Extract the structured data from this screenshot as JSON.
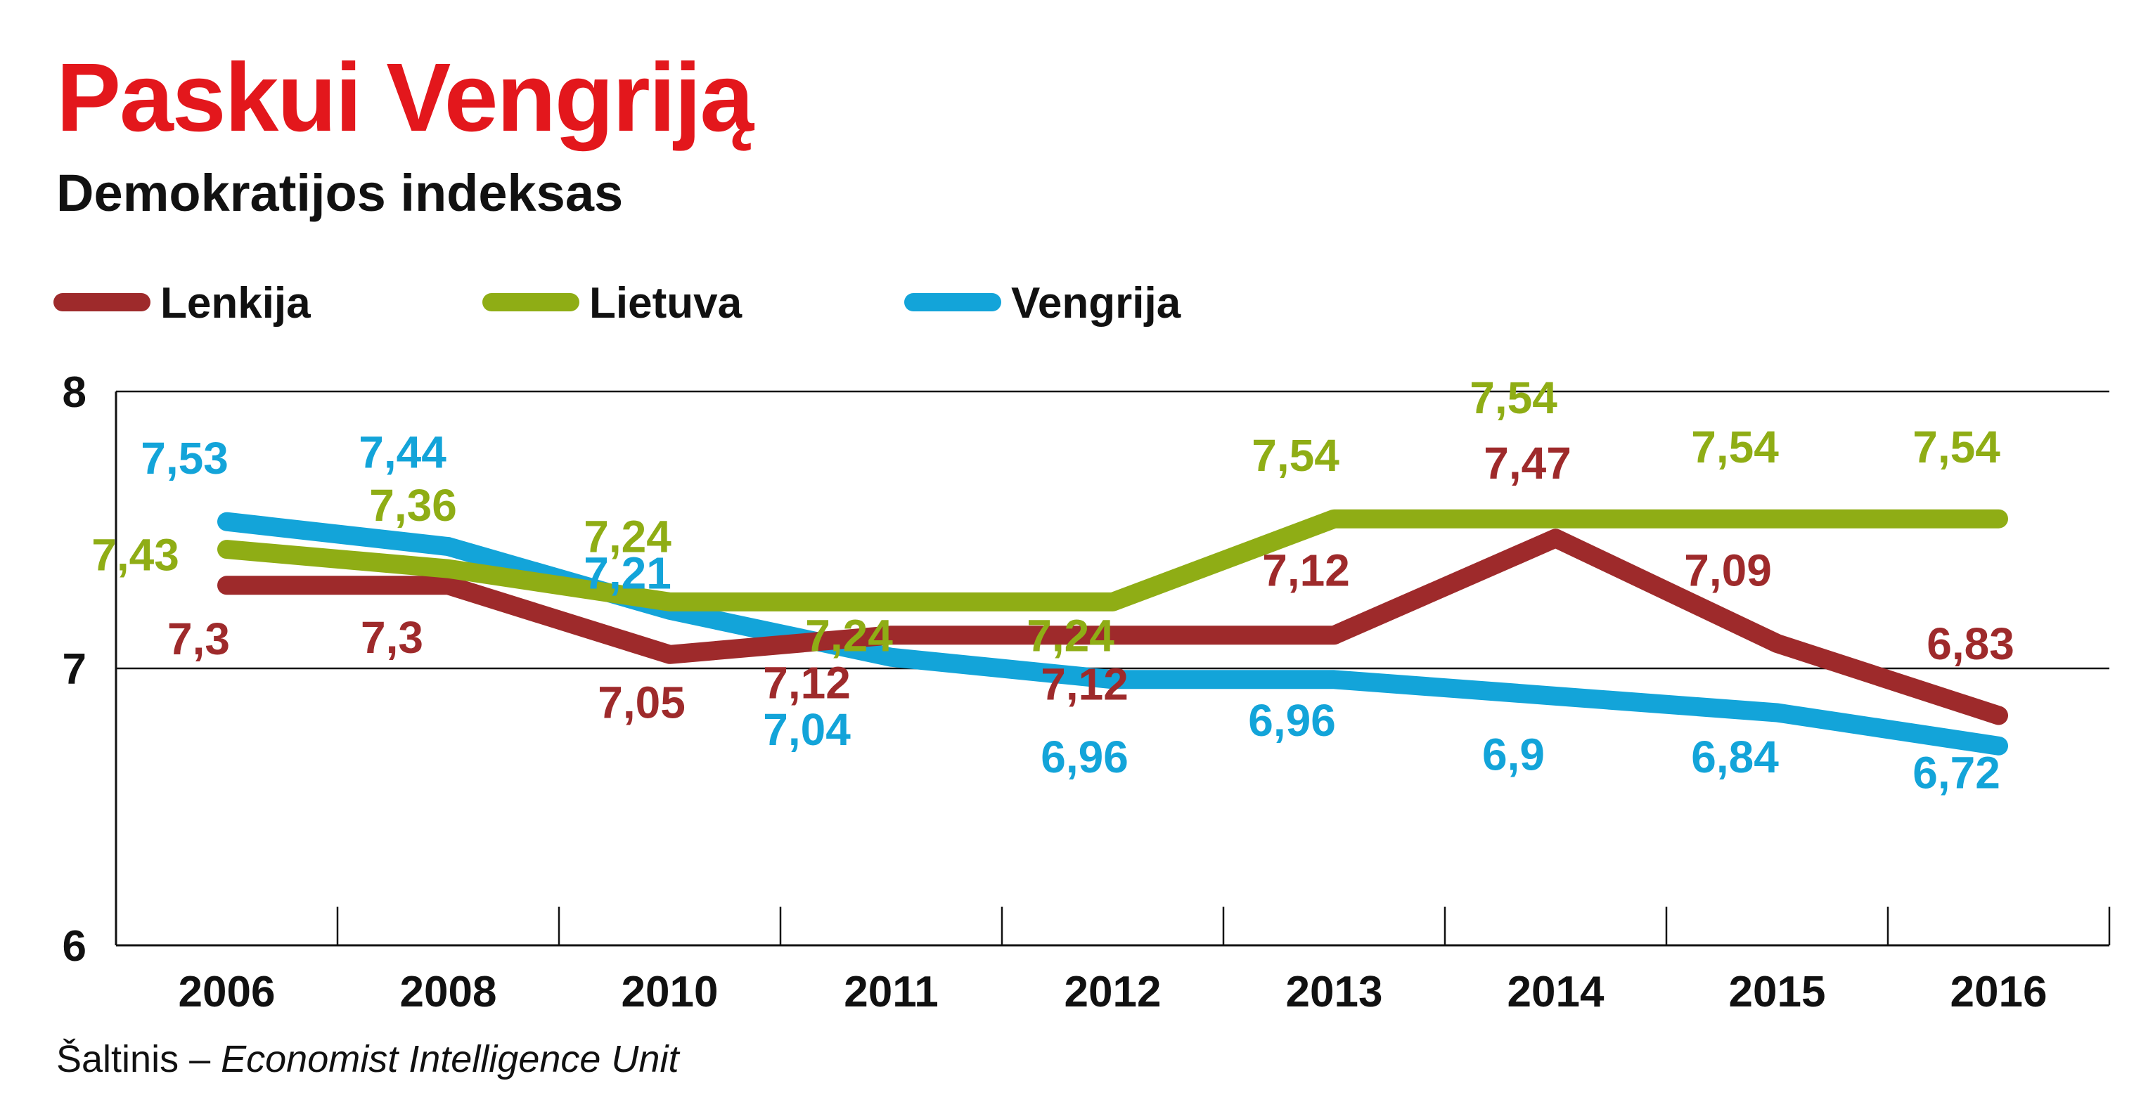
{
  "title": "Paskui Vengriją",
  "subtitle": "Demokratijos indeksas",
  "source": {
    "prefix": "Šaltinis – ",
    "name": "Economist Intelligence Unit"
  },
  "colors": {
    "title": "#e3171c",
    "Lenkija": "#9e2a2b",
    "Lietuva": "#8fad15",
    "Vengrija": "#13a4d9"
  },
  "chart_data": {
    "type": "line",
    "title": "Paskui Vengriją",
    "subtitle": "Demokratijos indeksas",
    "xlabel": "",
    "ylabel": "",
    "categories": [
      "2006",
      "2008",
      "2010",
      "2011",
      "2012",
      "2013",
      "2014",
      "2015",
      "2016"
    ],
    "ylim": [
      6,
      8
    ],
    "yticks": [
      "6",
      "7",
      "8"
    ],
    "grid": "horizontal at 7 and 8",
    "legend": "top",
    "series": [
      {
        "name": "Lenkija",
        "values": [
          7.3,
          7.3,
          7.05,
          7.12,
          7.12,
          7.12,
          7.47,
          7.09,
          6.83
        ],
        "labels": [
          "7,3",
          "7,3",
          "7,05",
          "7,12",
          "7,12",
          "7,12",
          "7,47",
          "7,09",
          "6,83"
        ]
      },
      {
        "name": "Lietuva",
        "values": [
          7.43,
          7.36,
          7.24,
          7.24,
          7.24,
          7.54,
          7.54,
          7.54,
          7.54
        ],
        "labels": [
          "7,43",
          "7,36",
          "7,24",
          "7,24",
          "7,24",
          "7,54",
          "7,54",
          "7,54",
          "7,54"
        ]
      },
      {
        "name": "Vengrija",
        "values": [
          7.53,
          7.44,
          7.21,
          7.04,
          6.96,
          6.96,
          6.9,
          6.84,
          6.72
        ],
        "labels": [
          "7,53",
          "7,44",
          "7,21",
          "7,04",
          "6,96",
          "6,96",
          "6,9",
          "6,84",
          "6,72"
        ]
      }
    ]
  }
}
